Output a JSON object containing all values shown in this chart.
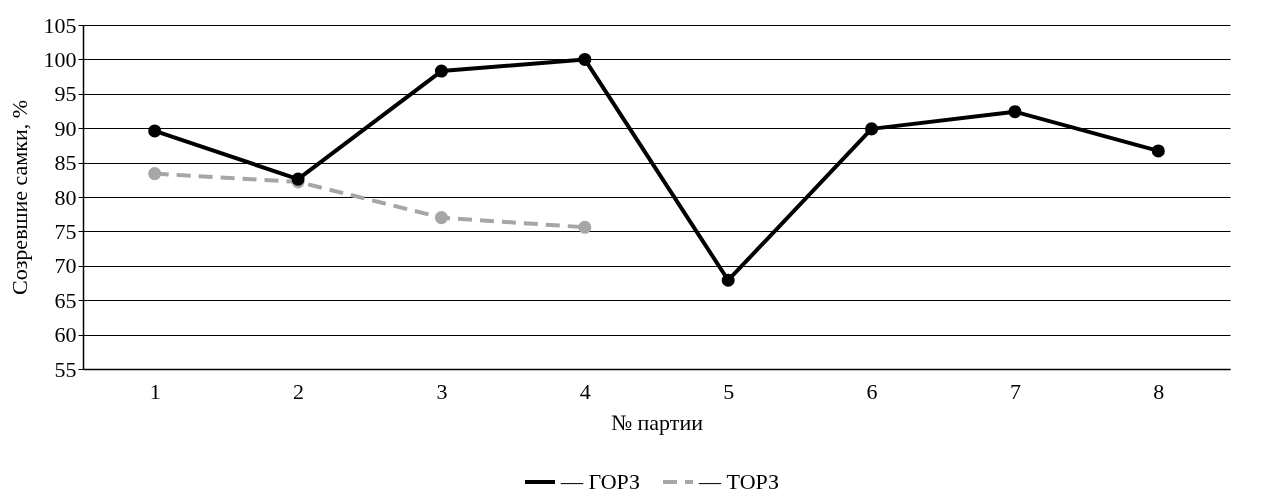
{
  "chart_data": {
    "type": "line",
    "xlabel": "№ партии",
    "ylabel": "Созревшие самки, %",
    "categories": [
      "1",
      "2",
      "3",
      "4",
      "5",
      "6",
      "7",
      "8"
    ],
    "ylim": [
      55,
      105
    ],
    "yticks": [
      55,
      60,
      65,
      70,
      75,
      80,
      85,
      90,
      95,
      100,
      105
    ],
    "grid": "y",
    "legend": "bottom",
    "marker": "circle",
    "series": [
      {
        "name": "— ГОРЗ",
        "color": "#000000",
        "line_style": "solid",
        "values": [
          89.6,
          82.6,
          98.3,
          100,
          67.9,
          89.9,
          92.4,
          86.7
        ]
      },
      {
        "name": "— ТОРЗ",
        "color": "#a6a6a6",
        "line_style": "dashed",
        "values": [
          83.4,
          82.2,
          77.0,
          75.6,
          null,
          null,
          null,
          null
        ]
      }
    ]
  }
}
